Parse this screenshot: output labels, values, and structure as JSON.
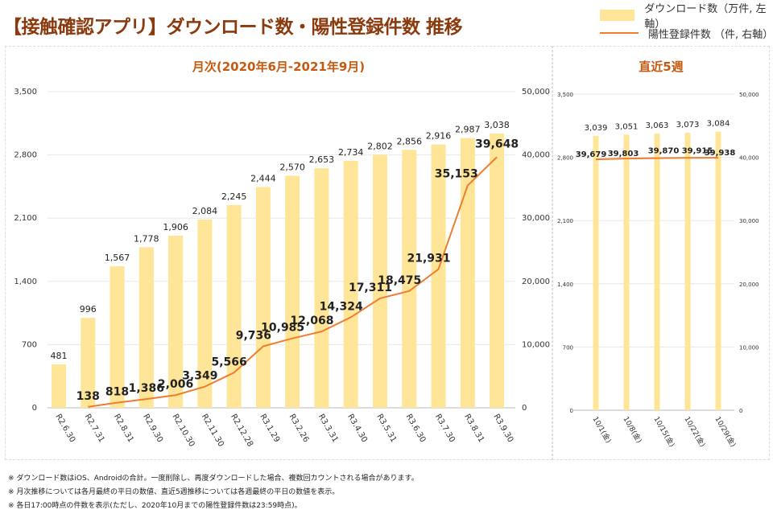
{
  "header": {
    "title": "【接触確認アプリ】ダウンロード数・陽性登録件数 推移"
  },
  "legend": {
    "items": [
      {
        "label": "ダウンロード数（万件, 左軸）",
        "type": "bar"
      },
      {
        "label": "陽性登録件数 （件, 右軸）",
        "type": "line"
      }
    ]
  },
  "colors": {
    "bar": "#ffe597",
    "line": "#ed7d31",
    "title": "#8b3a0e",
    "panel_title": "#c55a11"
  },
  "chart_data": [
    {
      "type": "bar",
      "title": "月次(2020年6月-2021年9月)",
      "categories": [
        "R2.6.30",
        "R2.7.31",
        "R2.8.31",
        "R2.9.30",
        "R2.10.30",
        "R2.11.30",
        "R2.12.28",
        "R3.1.29",
        "R3.2.26",
        "R3.3.31",
        "R3.4.30",
        "R3.5.31",
        "R3.6.30",
        "R3.7.30",
        "R3.8.31",
        "R3.9.30"
      ],
      "series": [
        {
          "name": "ダウンロード数（万件, 左軸）",
          "type": "bar",
          "axis": "left",
          "values": [
            481,
            996,
            1567,
            1778,
            1906,
            2084,
            2245,
            2444,
            2570,
            2653,
            2734,
            2802,
            2856,
            2916,
            2987,
            3038
          ],
          "labels": [
            "481",
            "996",
            "1,567",
            "1,778",
            "1,906",
            "2,084",
            "2,245",
            "2,444",
            "2,570",
            "2,653",
            "2,734",
            "2,802",
            "2,856",
            "2,916",
            "2,987",
            "3,038"
          ]
        },
        {
          "name": "陽性登録件数 （件, 右軸）",
          "type": "line",
          "axis": "right",
          "values": [
            null,
            138,
            818,
            1386,
            2006,
            3349,
            5566,
            9736,
            10985,
            12068,
            14324,
            17311,
            18475,
            21931,
            35153,
            39648
          ],
          "labels": [
            null,
            "138",
            "818",
            "1,386",
            "2,006",
            "3,349",
            "5,566",
            "9,736",
            "10,985",
            "12,068",
            "14,324",
            "17,311",
            "18,475",
            "21,931",
            "35,153",
            "39,648"
          ]
        }
      ],
      "left_axis": {
        "ylim": [
          0,
          3500
        ],
        "ticks": [
          "0",
          "700",
          "1,400",
          "2,100",
          "2,800",
          "3,500"
        ]
      },
      "right_axis": {
        "ylim": [
          0,
          50000
        ],
        "ticks": [
          "0",
          "10,000",
          "20,000",
          "30,000",
          "40,000",
          "50,000"
        ]
      },
      "grid": true
    },
    {
      "type": "bar",
      "title": "直近5週",
      "categories": [
        "10/1(金)",
        "10/8(金)",
        "10/15(金)",
        "10/22(金)",
        "10/29(金)"
      ],
      "series": [
        {
          "name": "ダウンロード数（万件, 左軸）",
          "type": "bar",
          "axis": "left",
          "values": [
            3039,
            3051,
            3063,
            3073,
            3084
          ],
          "labels": [
            "3,039",
            "3,051",
            "3,063",
            "3,073",
            "3,084"
          ]
        },
        {
          "name": "陽性登録件数 （件, 右軸）",
          "type": "line",
          "axis": "right",
          "values": [
            39679,
            39803,
            39870,
            39915,
            39938
          ],
          "labels": [
            "39,679",
            "39,803",
            "39,870",
            "39,915",
            "39,938"
          ]
        }
      ],
      "left_axis": {
        "ylim": [
          0,
          3500
        ],
        "ticks": [
          "0",
          "700",
          "1,400",
          "2,100",
          "2,800",
          "3,500"
        ]
      },
      "right_axis": {
        "ylim": [
          0,
          50000
        ],
        "ticks": [
          "0",
          "10,000",
          "20,000",
          "30,000",
          "40,000",
          "50,000"
        ]
      },
      "grid": true
    }
  ],
  "notes": [
    "※ ダウンロード数はiOS、Androidの合計。一度削除し、再度ダウンロードした場合、複数回カウントされる場合があります。",
    "※ 月次推移については各月最終の平日の数値、直近5週推移については各週最終の平日の数値を表示。",
    "※ 各日17:00時点の件数を表示(ただし、2020年10月までの陽性登録件数は23:59時点)。"
  ]
}
